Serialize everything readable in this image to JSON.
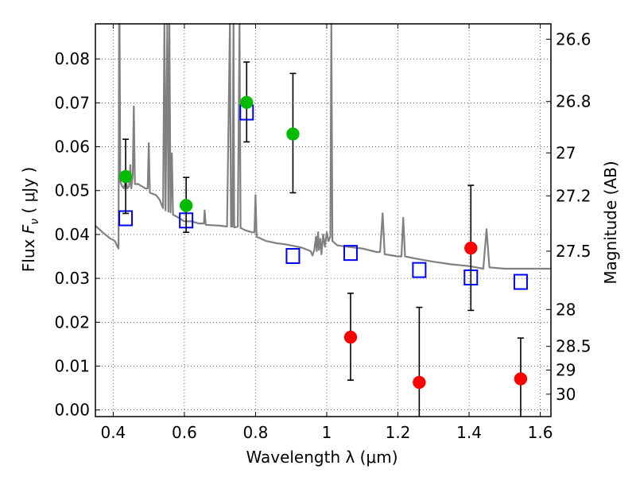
{
  "chart_data": {
    "type": "scatter",
    "title": "",
    "xlabel": "Wavelength  λ (μm)",
    "ylabel": "Flux  F_ν  ( μJy )",
    "ylabel_parts": {
      "prefix": "Flux  ",
      "symbol": "F",
      "subscript": "ν",
      "unit": "  ( μJy )"
    },
    "y2label": "Magnitude (AB)",
    "xlim": [
      0.35,
      1.63
    ],
    "ylim": [
      -0.0015,
      0.088
    ],
    "grid": true,
    "x_ticks": [
      0.4,
      0.6,
      0.8,
      1.0,
      1.2,
      1.4,
      1.6
    ],
    "x_tick_labels": [
      "0.4",
      "0.6",
      "0.8",
      "1",
      "1.2",
      "1.4",
      "1.6"
    ],
    "y_ticks": [
      0.0,
      0.01,
      0.02,
      0.03,
      0.04,
      0.05,
      0.06,
      0.07,
      0.08
    ],
    "y_tick_labels": [
      "0.00",
      "0.01",
      "0.02",
      "0.03",
      "0.04",
      "0.05",
      "0.06",
      "0.07",
      "0.08"
    ],
    "y2_ticks": [
      {
        "label": "26.6",
        "flux": 0.0845
      },
      {
        "label": "26.8",
        "flux": 0.0703
      },
      {
        "label": "27",
        "flux": 0.0586
      },
      {
        "label": "27.2",
        "flux": 0.0488
      },
      {
        "label": "27.5",
        "flux": 0.0362
      },
      {
        "label": "28",
        "flux": 0.0229
      },
      {
        "label": "28.5",
        "flux": 0.0145
      },
      {
        "label": "29",
        "flux": 0.0091
      },
      {
        "label": "30",
        "flux": 0.0036
      }
    ],
    "series": [
      {
        "kind": "line",
        "color": "#808080",
        "points": [
          [
            0.35,
            0.042
          ],
          [
            0.37,
            0.0405
          ],
          [
            0.39,
            0.0392
          ],
          [
            0.405,
            0.0385
          ],
          [
            0.412,
            0.0372
          ],
          [
            0.415,
            0.0368
          ],
          [
            0.4165,
            0.088
          ],
          [
            0.418,
            0.088
          ],
          [
            0.42,
            0.052
          ],
          [
            0.425,
            0.051
          ],
          [
            0.43,
            0.0505
          ],
          [
            0.435,
            0.0525
          ],
          [
            0.44,
            0.0505
          ],
          [
            0.445,
            0.051
          ],
          [
            0.448,
            0.0558
          ],
          [
            0.451,
            0.0505
          ],
          [
            0.455,
            0.0535
          ],
          [
            0.458,
            0.0692
          ],
          [
            0.461,
            0.0515
          ],
          [
            0.47,
            0.0515
          ],
          [
            0.48,
            0.051
          ],
          [
            0.49,
            0.0505
          ],
          [
            0.497,
            0.0505
          ],
          [
            0.5,
            0.0608
          ],
          [
            0.503,
            0.0495
          ],
          [
            0.52,
            0.049
          ],
          [
            0.53,
            0.048
          ],
          [
            0.54,
            0.046
          ],
          [
            0.544,
            0.088
          ],
          [
            0.547,
            0.0455
          ],
          [
            0.552,
            0.088
          ],
          [
            0.555,
            0.0452
          ],
          [
            0.558,
            0.088
          ],
          [
            0.561,
            0.045
          ],
          [
            0.565,
            0.0585
          ],
          [
            0.568,
            0.0445
          ],
          [
            0.58,
            0.044
          ],
          [
            0.6,
            0.043
          ],
          [
            0.62,
            0.043
          ],
          [
            0.64,
            0.0425
          ],
          [
            0.655,
            0.0425
          ],
          [
            0.657,
            0.0455
          ],
          [
            0.66,
            0.0422
          ],
          [
            0.7,
            0.042
          ],
          [
            0.72,
            0.0418
          ],
          [
            0.728,
            0.088
          ],
          [
            0.731,
            0.0418
          ],
          [
            0.735,
            0.0418
          ],
          [
            0.738,
            0.088
          ],
          [
            0.74,
            0.0416
          ],
          [
            0.75,
            0.0418
          ],
          [
            0.755,
            0.088
          ],
          [
            0.758,
            0.0415
          ],
          [
            0.77,
            0.041
          ],
          [
            0.79,
            0.0405
          ],
          [
            0.797,
            0.0405
          ],
          [
            0.8,
            0.049
          ],
          [
            0.803,
            0.0395
          ],
          [
            0.83,
            0.0385
          ],
          [
            0.86,
            0.038
          ],
          [
            0.88,
            0.0378
          ],
          [
            0.9,
            0.0375
          ],
          [
            0.93,
            0.037
          ],
          [
            0.955,
            0.0362
          ],
          [
            0.96,
            0.0352
          ],
          [
            0.965,
            0.0365
          ],
          [
            0.97,
            0.0395
          ],
          [
            0.972,
            0.0362
          ],
          [
            0.976,
            0.0405
          ],
          [
            0.978,
            0.0365
          ],
          [
            0.982,
            0.039
          ],
          [
            0.985,
            0.0355
          ],
          [
            0.99,
            0.04
          ],
          [
            0.995,
            0.0372
          ],
          [
            1.0,
            0.0405
          ],
          [
            1.005,
            0.0385
          ],
          [
            1.01,
            0.0395
          ],
          [
            1.013,
            0.088
          ],
          [
            1.016,
            0.0385
          ],
          [
            1.03,
            0.0375
          ],
          [
            1.06,
            0.0372
          ],
          [
            1.1,
            0.0368
          ],
          [
            1.14,
            0.036
          ],
          [
            1.15,
            0.036
          ],
          [
            1.157,
            0.0448
          ],
          [
            1.163,
            0.0355
          ],
          [
            1.2,
            0.035
          ],
          [
            1.21,
            0.035
          ],
          [
            1.215,
            0.0438
          ],
          [
            1.22,
            0.035
          ],
          [
            1.25,
            0.0345
          ],
          [
            1.3,
            0.0338
          ],
          [
            1.35,
            0.0332
          ],
          [
            1.4,
            0.0328
          ],
          [
            1.42,
            0.0325
          ],
          [
            1.44,
            0.0322
          ],
          [
            1.449,
            0.0412
          ],
          [
            1.457,
            0.0325
          ],
          [
            1.5,
            0.0322
          ],
          [
            1.55,
            0.0322
          ],
          [
            1.6,
            0.0322
          ],
          [
            1.63,
            0.0322
          ]
        ]
      },
      {
        "kind": "squares",
        "color": "#0000ff",
        "points": [
          [
            0.435,
            0.0437
          ],
          [
            0.605,
            0.0432
          ],
          [
            0.775,
            0.0678
          ],
          [
            0.905,
            0.0351
          ],
          [
            1.067,
            0.0358
          ],
          [
            1.26,
            0.0319
          ],
          [
            1.405,
            0.0302
          ],
          [
            1.545,
            0.0292
          ]
        ]
      },
      {
        "kind": "dots",
        "color": "#00bb00",
        "points": [
          {
            "x": 0.435,
            "y": 0.0532,
            "lo": 0.0448,
            "hi": 0.0617
          },
          {
            "x": 0.605,
            "y": 0.0466,
            "lo": 0.0405,
            "hi": 0.053
          },
          {
            "x": 0.775,
            "y": 0.0701,
            "lo": 0.0611,
            "hi": 0.0793
          },
          {
            "x": 0.905,
            "y": 0.0629,
            "lo": 0.0495,
            "hi": 0.0767
          }
        ]
      },
      {
        "kind": "dots",
        "color": "#ff0000",
        "points": [
          {
            "x": 1.067,
            "y": 0.0166,
            "lo": 0.0068,
            "hi": 0.0266
          },
          {
            "x": 1.26,
            "y": 0.0063,
            "lo": -0.0015,
            "hi": 0.0234
          },
          {
            "x": 1.405,
            "y": 0.0369,
            "lo": 0.0227,
            "hi": 0.0512
          },
          {
            "x": 1.545,
            "y": 0.0071,
            "lo": -0.0015,
            "hi": 0.0164
          }
        ]
      }
    ]
  }
}
